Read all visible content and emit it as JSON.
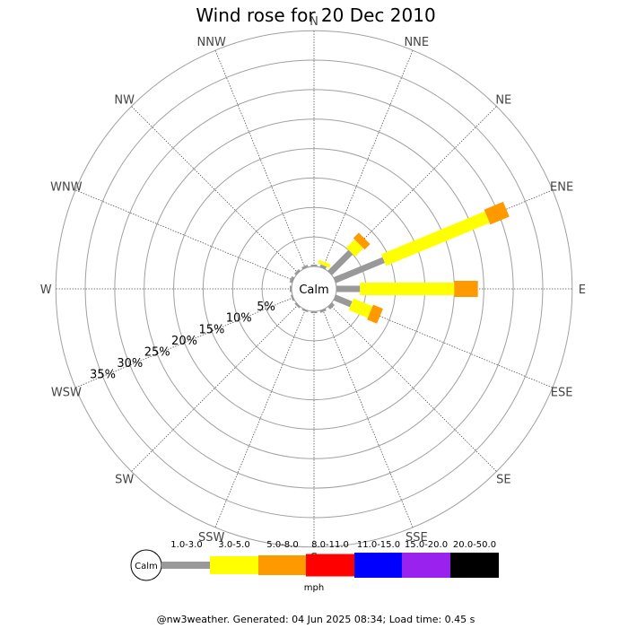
{
  "chart_data": {
    "type": "windrose",
    "title": "Wind rose for 20 Dec 2010",
    "directions": [
      "N",
      "NNE",
      "NE",
      "ENE",
      "E",
      "ESE",
      "SE",
      "SSE",
      "S",
      "SSW",
      "SW",
      "WSW",
      "W",
      "WNW",
      "NW",
      "NNW"
    ],
    "ring_labels": [
      "5%",
      "10%",
      "15%",
      "20%",
      "25%",
      "30%",
      "35%"
    ],
    "ring_values": [
      5,
      10,
      15,
      20,
      25,
      30,
      35
    ],
    "calm_label": "Calm",
    "unit": "mph",
    "speed_bins": [
      {
        "label": "1.0-3.0",
        "color": "#999999"
      },
      {
        "label": "3.0-5.0",
        "color": "#ffff00"
      },
      {
        "label": "5.0-8.0",
        "color": "#ff9900"
      },
      {
        "label": "8.0-11.0",
        "color": "#ff0000"
      },
      {
        "label": "11.0-15.0",
        "color": "#0000ff"
      },
      {
        "label": "15.0-20.0",
        "color": "#9922ee"
      },
      {
        "label": "20.0-50.0",
        "color": "#000000"
      }
    ],
    "series": [
      {
        "direction": "N",
        "segments": [
          0.3
        ]
      },
      {
        "direction": "NNE",
        "segments": [
          0.5,
          0.6
        ]
      },
      {
        "direction": "NE",
        "segments": [
          5.0,
          2.0,
          1.3
        ]
      },
      {
        "direction": "ENE",
        "segments": [
          9.0,
          19.0,
          3.5
        ]
      },
      {
        "direction": "E",
        "segments": [
          4.0,
          16.0,
          4.0
        ]
      },
      {
        "direction": "ESE",
        "segments": [
          3.0,
          3.5,
          1.8
        ]
      },
      {
        "direction": "SE",
        "segments": [
          0.6
        ]
      },
      {
        "direction": "SSE",
        "segments": [
          0.4
        ]
      },
      {
        "direction": "S",
        "segments": [
          0.3
        ]
      },
      {
        "direction": "SSW",
        "segments": [
          0.3
        ]
      },
      {
        "direction": "SW",
        "segments": [
          0.3
        ]
      },
      {
        "direction": "WSW",
        "segments": [
          0.3
        ]
      },
      {
        "direction": "W",
        "segments": [
          0.3
        ]
      },
      {
        "direction": "WNW",
        "segments": [
          0.5
        ]
      },
      {
        "direction": "NW",
        "segments": [
          0.4
        ]
      },
      {
        "direction": "NNW",
        "segments": [
          0.4
        ]
      }
    ]
  },
  "footer": "@nw3weather. Generated: 04 Jun 2025 08:34; Load time: 0.45 s"
}
